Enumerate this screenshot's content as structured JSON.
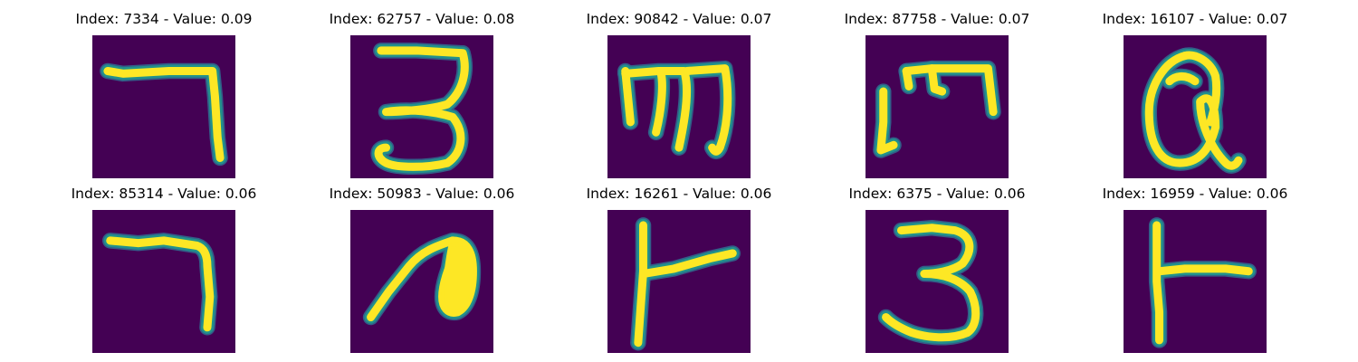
{
  "colors": {
    "background": "#440154",
    "stroke": "#fde725",
    "edge_mid": "#21918c",
    "edge_outer": "#31688e"
  },
  "panels": [
    {
      "title": "Index: 7334 - Value: 0.09",
      "index": 7334,
      "value": 0.09,
      "glyph": "7"
    },
    {
      "title": "Index: 62757 - Value: 0.08",
      "index": 62757,
      "value": 0.08,
      "glyph": "3"
    },
    {
      "title": "Index: 90842 - Value: 0.07",
      "index": 90842,
      "value": 0.07,
      "glyph": "m"
    },
    {
      "title": "Index: 87758 - Value: 0.07",
      "index": 87758,
      "value": 0.07,
      "glyph": "m"
    },
    {
      "title": "Index: 16107 - Value: 0.07",
      "index": 16107,
      "value": 0.07,
      "glyph": "a"
    },
    {
      "title": "Index: 85314 - Value: 0.06",
      "index": 85314,
      "value": 0.06,
      "glyph": "7"
    },
    {
      "title": "Index: 50983 - Value: 0.06",
      "index": 50983,
      "value": 0.06,
      "glyph": "n"
    },
    {
      "title": "Index: 16261 - Value: 0.06",
      "index": 16261,
      "value": 0.06,
      "glyph": "t"
    },
    {
      "title": "Index: 6375 - Value: 0.06",
      "index": 6375,
      "value": 0.06,
      "glyph": "3"
    },
    {
      "title": "Index: 16959 - Value: 0.06",
      "index": 16959,
      "value": 0.06,
      "glyph": "t"
    }
  ]
}
